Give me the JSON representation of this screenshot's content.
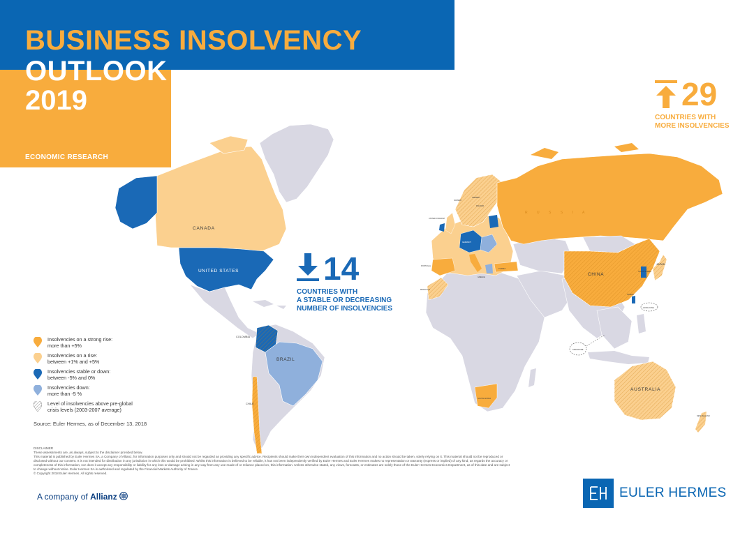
{
  "header": {
    "title_line1": "BUSINESS INSOLVENCY",
    "title_line2": "OUTLOOK",
    "title_line3": "2019",
    "subtitle": "ECONOMIC RESEARCH"
  },
  "colors": {
    "header_blue": "#0a66b3",
    "strong_rise": "#f8ac3d",
    "rise": "#fbd08f",
    "stable_down": "#1a69b6",
    "down": "#8fb0dc",
    "no_data": "#d9d8e3"
  },
  "stats": {
    "up": {
      "icon": "arrow-up-icon",
      "number": "29",
      "label_line1": "COUNTRIES WITH",
      "label_line2": "MORE INSOLVENCIES"
    },
    "down": {
      "icon": "arrow-down-icon",
      "number": "14",
      "label_line1": "COUNTRIES WITH",
      "label_line2": "A STABLE OR DECREASING",
      "label_line3": "NUMBER OF INSOLVENCIES"
    }
  },
  "map_labels": {
    "canada": "CANADA",
    "united_states": "UNITED STATES",
    "brazil": "BRAZIL",
    "colombia": "COLOMBIA",
    "chile": "CHILE",
    "russia": "R U S S I A",
    "china": "CHINA",
    "japan": "JAPAN",
    "australia": "AUSTRALIA",
    "south_africa": "SOUTH AFRICA",
    "new_zealand": "NEW ZEALAND",
    "singapore": "SINGAPORE",
    "hong_kong": "HONG KONG",
    "taiwan": "TAIWAN",
    "south_korea": "SOUTH KOREA",
    "norway": "NORWAY",
    "sweden": "SWEDEN",
    "finland": "FINLAND",
    "united_kingdom": "UNITED KINGDOM",
    "portugal": "PORTUGAL",
    "morocco": "MOROCCO",
    "germany": "GERMANY",
    "greece": "GREECE",
    "turkey": "TURKEY"
  },
  "legend": [
    {
      "label_line1": "Insolvencies on a strong rise:",
      "label_line2": "more than +5%",
      "swatch": "strong_rise"
    },
    {
      "label_line1": "Insolvencies on a rise:",
      "label_line2": "between +1% and +5%",
      "swatch": "rise"
    },
    {
      "label_line1": "Insolvencies stable or down:",
      "label_line2": "between -5% and 0%",
      "swatch": "stable_down"
    },
    {
      "label_line1": "Insolvencies down:",
      "label_line2": "more than -5 %",
      "swatch": "down"
    },
    {
      "label_line1": "Level of insolvencies above pre-global",
      "label_line2": "crisis levels (2003-2007 average)",
      "swatch": "hatched"
    }
  ],
  "source": "Source: Euler Hermes, as of December 13, 2018",
  "disclaimer": {
    "heading": "DISCLAIMER",
    "line1": "These assessments are, as always, subject to the disclaimer provided below.",
    "line2": "This material is published by Euler Hermes SA, a Company of Allianz, for information purposes only and should not be regarded as providing any specific advice. Recipients should make their own independent evaluation of this information and no action should be taken, solely relying on it. This material should not be reproduced or",
    "line3": "disclosed without our consent. It is not intended for distribution in any jurisdiction in which this would be prohibited. Whilst this information is believed to be reliable, it has not been independently verified by Euler Hermes and Euler Hermes makes no representation or warranty (express or implied) of any kind, as regards the accuracy or",
    "line4": "completeness of this information, nor does it accept any responsibility or liability for any loss or damage arising in any way from any use made of or reliance placed on, this information. Unless otherwise stated, any views, forecasts, or estimates are solely those of the Euler Hermes Economics Department, as of this date and are subject",
    "line5": "to change without notice. Euler Hermes SA is authorised and regulated by the Financial Markets Authority of France.",
    "line6": "© Copyright 2018 Euler Hermes. All rights reserved."
  },
  "footer": {
    "company_prefix": "A company of",
    "company_name": "Allianz",
    "brand": "EULER HERMES"
  }
}
